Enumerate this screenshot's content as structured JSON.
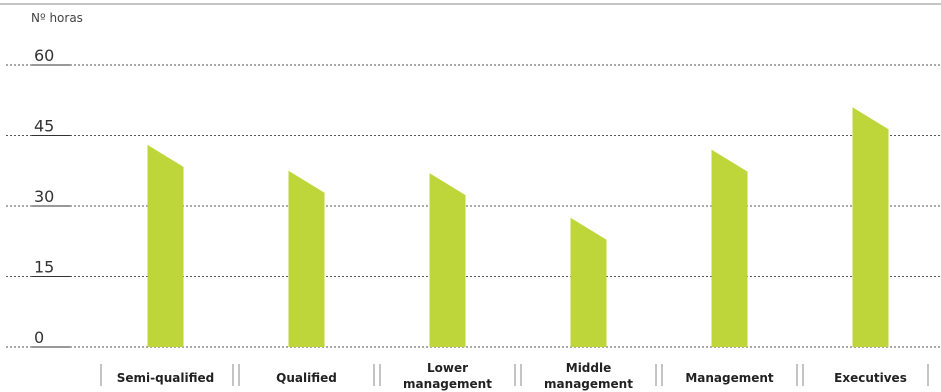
{
  "chart_data": {
    "type": "bar",
    "ylabel": "Nº horas",
    "yticks": [
      "60",
      "45",
      "30",
      "15",
      "0"
    ],
    "ylim": [
      0,
      60
    ],
    "grid": true,
    "categories": [
      [
        "Semi-qualified"
      ],
      [
        "Qualified"
      ],
      [
        "Lower",
        "management"
      ],
      [
        "Middle",
        "management"
      ],
      [
        "Management"
      ],
      [
        "Executives"
      ]
    ],
    "values": [
      43,
      37.5,
      37,
      27.5,
      42,
      51
    ],
    "colors": {
      "bar": "#bed63a",
      "grid": "#555555",
      "axis": "#888888"
    }
  }
}
